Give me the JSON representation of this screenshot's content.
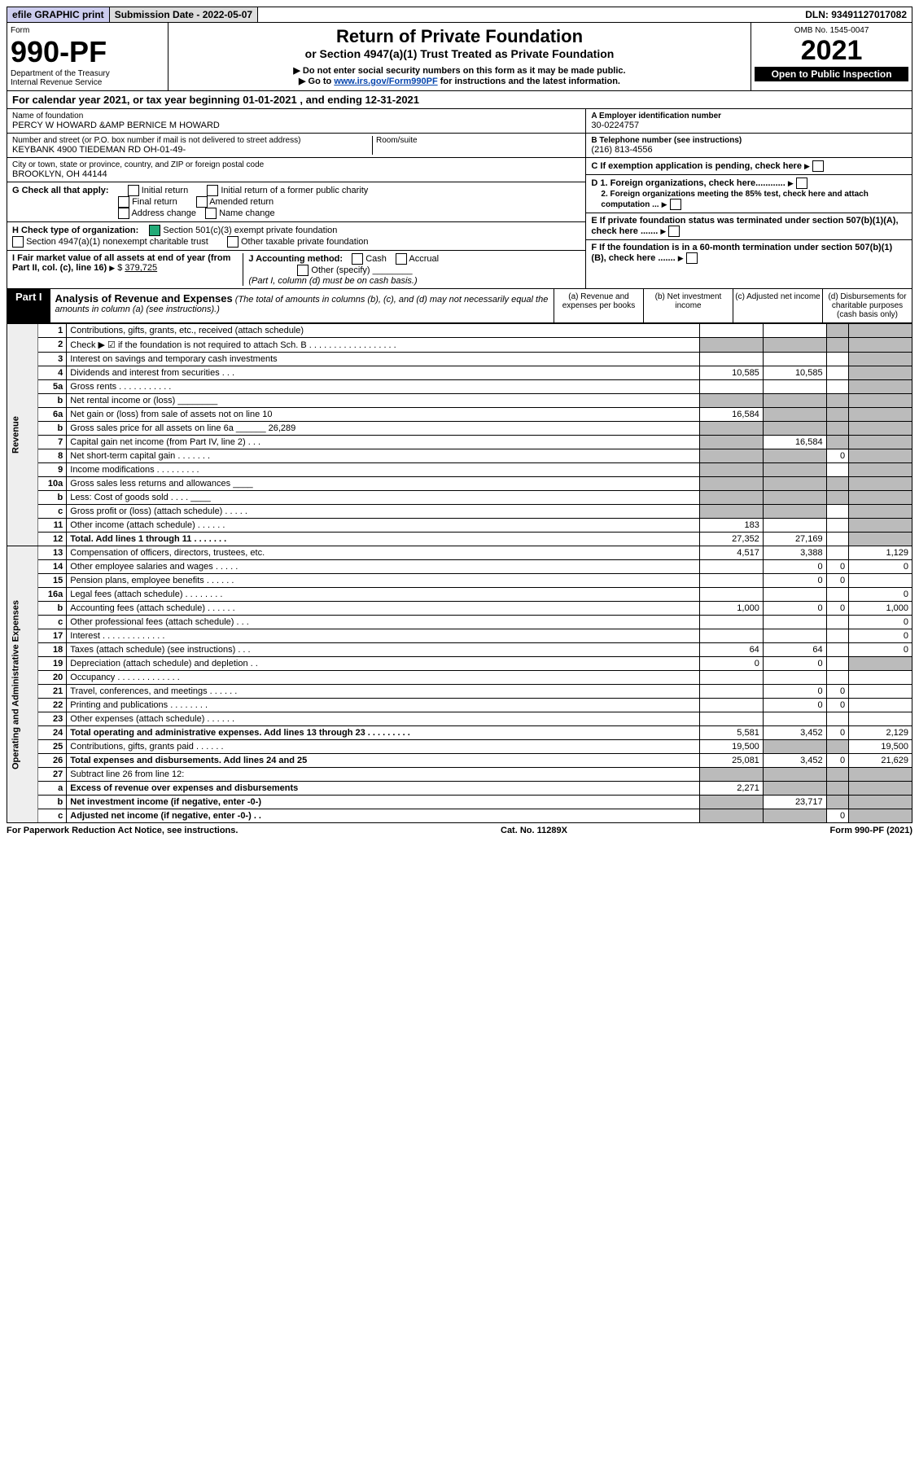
{
  "topbar": {
    "efile": "efile GRAPHIC print",
    "subdate_lbl": "Submission Date - ",
    "subdate": "2022-05-07",
    "dln_lbl": "DLN: ",
    "dln": "93491127017082"
  },
  "header": {
    "form_word": "Form",
    "form_num": "990-PF",
    "dept": "Department of the Treasury",
    "irs": "Internal Revenue Service",
    "title": "Return of Private Foundation",
    "subtitle": "or Section 4947(a)(1) Trust Treated as Private Foundation",
    "warn": "▶ Do not enter social security numbers on this form as it may be made public.",
    "goto_pre": "▶ Go to ",
    "goto_link": "www.irs.gov/Form990PF",
    "goto_post": " for instructions and the latest information.",
    "omb": "OMB No. 1545-0047",
    "year": "2021",
    "open": "Open to Public Inspection"
  },
  "calyear": {
    "pre": "For calendar year 2021, or tax year beginning ",
    "begin": "01-01-2021",
    "mid": " , and ending ",
    "end": "12-31-2021"
  },
  "entity": {
    "name_lbl": "Name of foundation",
    "name": "PERCY W HOWARD &AMP BERNICE M HOWARD",
    "addr_lbl": "Number and street (or P.O. box number if mail is not delivered to street address)",
    "addr": "KEYBANK 4900 TIEDEMAN RD OH-01-49-",
    "room_lbl": "Room/suite",
    "city_lbl": "City or town, state or province, country, and ZIP or foreign postal code",
    "city": "BROOKLYN, OH  44144",
    "ein_lbl": "A Employer identification number",
    "ein": "30-0224757",
    "tel_lbl": "B Telephone number (see instructions)",
    "tel": "(216) 813-4556",
    "c": "C If exemption application is pending, check here",
    "d1": "D 1. Foreign organizations, check here............",
    "d2": "2. Foreign organizations meeting the 85% test, check here and attach computation ...",
    "e": "E If private foundation status was terminated under section 507(b)(1)(A), check here .......",
    "f": "F If the foundation is in a 60-month termination under section 507(b)(1)(B), check here .......",
    "g_lbl": "G Check all that apply:",
    "g_opts": [
      "Initial return",
      "Final return",
      "Address change",
      "Initial return of a former public charity",
      "Amended return",
      "Name change"
    ],
    "h_lbl": "H Check type of organization:",
    "h1": "Section 501(c)(3) exempt private foundation",
    "h2": "Section 4947(a)(1) nonexempt charitable trust",
    "h3": "Other taxable private foundation",
    "i_lbl": "I Fair market value of all assets at end of year (from Part II, col. (c), line 16)",
    "i_val": "379,725",
    "j_lbl": "J Accounting method:",
    "j_opts": [
      "Cash",
      "Accrual"
    ],
    "j_other": "Other (specify)",
    "j_note": "(Part I, column (d) must be on cash basis.)"
  },
  "part1": {
    "label": "Part I",
    "title": "Analysis of Revenue and Expenses",
    "note": "(The total of amounts in columns (b), (c), and (d) may not necessarily equal the amounts in column (a) (see instructions).)",
    "cols": {
      "a": "(a) Revenue and expenses per books",
      "b": "(b) Net investment income",
      "c": "(c) Adjusted net income",
      "d": "(d) Disbursements for charitable purposes (cash basis only)"
    }
  },
  "sections": {
    "revenue": "Revenue",
    "opex": "Operating and Administrative Expenses"
  },
  "lines": [
    {
      "n": "1",
      "lbl": "Contributions, gifts, grants, etc., received (attach schedule)",
      "a": "",
      "b": "",
      "c": "shade",
      "d": "shade"
    },
    {
      "n": "2",
      "lbl": "Check ▶ ☑ if the foundation is not required to attach Sch. B  . . . . . . . . . . . . . . . . . .",
      "a": "shade",
      "b": "shade",
      "c": "shade",
      "d": "shade"
    },
    {
      "n": "3",
      "lbl": "Interest on savings and temporary cash investments",
      "a": "",
      "b": "",
      "c": "",
      "d": "shade"
    },
    {
      "n": "4",
      "lbl": "Dividends and interest from securities   .  .  .",
      "a": "10,585",
      "b": "10,585",
      "c": "",
      "d": "shade"
    },
    {
      "n": "5a",
      "lbl": "Gross rents   .  .  .  .  .  .  .  .  .  .  .",
      "a": "",
      "b": "",
      "c": "",
      "d": "shade"
    },
    {
      "n": "b",
      "lbl": "Net rental income or (loss) ________",
      "a": "shade",
      "b": "shade",
      "c": "shade",
      "d": "shade"
    },
    {
      "n": "6a",
      "lbl": "Net gain or (loss) from sale of assets not on line 10",
      "a": "16,584",
      "b": "shade",
      "c": "shade",
      "d": "shade"
    },
    {
      "n": "b",
      "lbl": "Gross sales price for all assets on line 6a ______ 26,289",
      "a": "shade",
      "b": "shade",
      "c": "shade",
      "d": "shade"
    },
    {
      "n": "7",
      "lbl": "Capital gain net income (from Part IV, line 2)   .  .  .",
      "a": "shade",
      "b": "16,584",
      "c": "shade",
      "d": "shade"
    },
    {
      "n": "8",
      "lbl": "Net short-term capital gain  .  .  .  .  .  .  .",
      "a": "shade",
      "b": "shade",
      "c": "0",
      "d": "shade"
    },
    {
      "n": "9",
      "lbl": "Income modifications  .  .  .  .  .  .  .  .  .",
      "a": "shade",
      "b": "shade",
      "c": "",
      "d": "shade"
    },
    {
      "n": "10a",
      "lbl": "Gross sales less returns and allowances ____",
      "a": "shade",
      "b": "shade",
      "c": "shade",
      "d": "shade"
    },
    {
      "n": "b",
      "lbl": "Less: Cost of goods sold   .  .  .  . ____",
      "a": "shade",
      "b": "shade",
      "c": "shade",
      "d": "shade"
    },
    {
      "n": "c",
      "lbl": "Gross profit or (loss) (attach schedule)   .  .  .  .  .",
      "a": "shade",
      "b": "shade",
      "c": "",
      "d": "shade"
    },
    {
      "n": "11",
      "lbl": "Other income (attach schedule)   .  .  .  .  .  .",
      "a": "183",
      "b": "",
      "c": "",
      "d": "shade"
    },
    {
      "n": "12",
      "lbl": "Total. Add lines 1 through 11   .  .  .  .  .  .  .",
      "bold": true,
      "a": "27,352",
      "b": "27,169",
      "c": "",
      "d": "shade"
    },
    {
      "n": "13",
      "lbl": "Compensation of officers, directors, trustees, etc.",
      "a": "4,517",
      "b": "3,388",
      "c": "",
      "d": "1,129"
    },
    {
      "n": "14",
      "lbl": "Other employee salaries and wages   .  .  .  .  .",
      "a": "",
      "b": "0",
      "c": "0",
      "d": "0"
    },
    {
      "n": "15",
      "lbl": "Pension plans, employee benefits  .  .  .  .  .  .",
      "a": "",
      "b": "0",
      "c": "0",
      "d": ""
    },
    {
      "n": "16a",
      "lbl": "Legal fees (attach schedule)  .  .  .  .  .  .  .  .",
      "a": "",
      "b": "",
      "c": "",
      "d": "0"
    },
    {
      "n": "b",
      "lbl": "Accounting fees (attach schedule)  .  .  .  .  .  .",
      "a": "1,000",
      "b": "0",
      "c": "0",
      "d": "1,000"
    },
    {
      "n": "c",
      "lbl": "Other professional fees (attach schedule)   .  .  .",
      "a": "",
      "b": "",
      "c": "",
      "d": "0"
    },
    {
      "n": "17",
      "lbl": "Interest  .  .  .  .  .  .  .  .  .  .  .  .  .",
      "a": "",
      "b": "",
      "c": "",
      "d": "0"
    },
    {
      "n": "18",
      "lbl": "Taxes (attach schedule) (see instructions)   .  .  .",
      "a": "64",
      "b": "64",
      "c": "",
      "d": "0"
    },
    {
      "n": "19",
      "lbl": "Depreciation (attach schedule) and depletion   .  .",
      "a": "0",
      "b": "0",
      "c": "",
      "d": "shade"
    },
    {
      "n": "20",
      "lbl": "Occupancy  .  .  .  .  .  .  .  .  .  .  .  .  .",
      "a": "",
      "b": "",
      "c": "",
      "d": ""
    },
    {
      "n": "21",
      "lbl": "Travel, conferences, and meetings  .  .  .  .  .  .",
      "a": "",
      "b": "0",
      "c": "0",
      "d": ""
    },
    {
      "n": "22",
      "lbl": "Printing and publications  .  .  .  .  .  .  .  .",
      "a": "",
      "b": "0",
      "c": "0",
      "d": ""
    },
    {
      "n": "23",
      "lbl": "Other expenses (attach schedule)  .  .  .  .  .  .",
      "a": "",
      "b": "",
      "c": "",
      "d": ""
    },
    {
      "n": "24",
      "lbl": "Total operating and administrative expenses. Add lines 13 through 23  .  .  .  .  .  .  .  .  .",
      "bold": true,
      "a": "5,581",
      "b": "3,452",
      "c": "0",
      "d": "2,129"
    },
    {
      "n": "25",
      "lbl": "Contributions, gifts, grants paid   .  .  .  .  .  .",
      "a": "19,500",
      "b": "shade",
      "c": "shade",
      "d": "19,500"
    },
    {
      "n": "26",
      "lbl": "Total expenses and disbursements. Add lines 24 and 25",
      "bold": true,
      "a": "25,081",
      "b": "3,452",
      "c": "0",
      "d": "21,629"
    },
    {
      "n": "27",
      "lbl": "Subtract line 26 from line 12:",
      "a": "shade",
      "b": "shade",
      "c": "shade",
      "d": "shade"
    },
    {
      "n": "a",
      "lbl": "Excess of revenue over expenses and disbursements",
      "bold": true,
      "a": "2,271",
      "b": "shade",
      "c": "shade",
      "d": "shade"
    },
    {
      "n": "b",
      "lbl": "Net investment income (if negative, enter -0-)",
      "bold": true,
      "a": "shade",
      "b": "23,717",
      "c": "shade",
      "d": "shade"
    },
    {
      "n": "c",
      "lbl": "Adjusted net income (if negative, enter -0-)  .  .",
      "bold": true,
      "a": "shade",
      "b": "shade",
      "c": "0",
      "d": "shade"
    }
  ],
  "footer": {
    "left": "For Paperwork Reduction Act Notice, see instructions.",
    "mid": "Cat. No. 11289X",
    "right": "Form 990-PF (2021)"
  }
}
